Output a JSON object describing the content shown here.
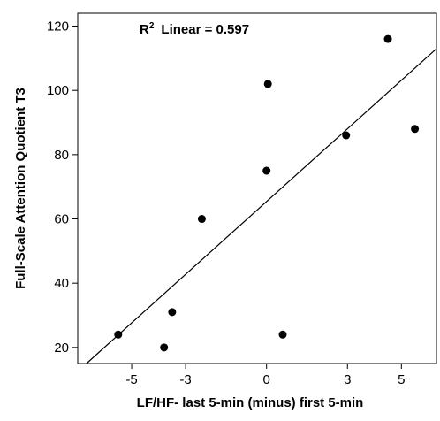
{
  "chart_data": {
    "type": "scatter",
    "xlabel": "LF/HF- last 5-min (minus) first 5-min",
    "ylabel": "Full-Scale Attention Quotient  T3",
    "annotation": {
      "r2_symbol": "R",
      "r2_superscript": "2",
      "text": "Linear = 0.597"
    },
    "xlim": [
      -7,
      6.3
    ],
    "ylim": [
      15,
      124
    ],
    "xticks": [
      -5,
      -3,
      0,
      3,
      5
    ],
    "yticks": [
      20,
      40,
      60,
      80,
      100,
      120
    ],
    "grid": false,
    "points": [
      {
        "x": -5.5,
        "y": 24
      },
      {
        "x": -3.8,
        "y": 20
      },
      {
        "x": -3.5,
        "y": 31
      },
      {
        "x": -2.4,
        "y": 60
      },
      {
        "x": 0.0,
        "y": 75
      },
      {
        "x": 0.05,
        "y": 102
      },
      {
        "x": 0.6,
        "y": 24
      },
      {
        "x": 2.95,
        "y": 86
      },
      {
        "x": 4.5,
        "y": 116
      },
      {
        "x": 5.5,
        "y": 88
      }
    ],
    "fit_line": {
      "slope": 7.55,
      "intercept": 65.4
    },
    "colors": {
      "points": "#000000",
      "line": "#000000",
      "axes": "#000000"
    }
  }
}
